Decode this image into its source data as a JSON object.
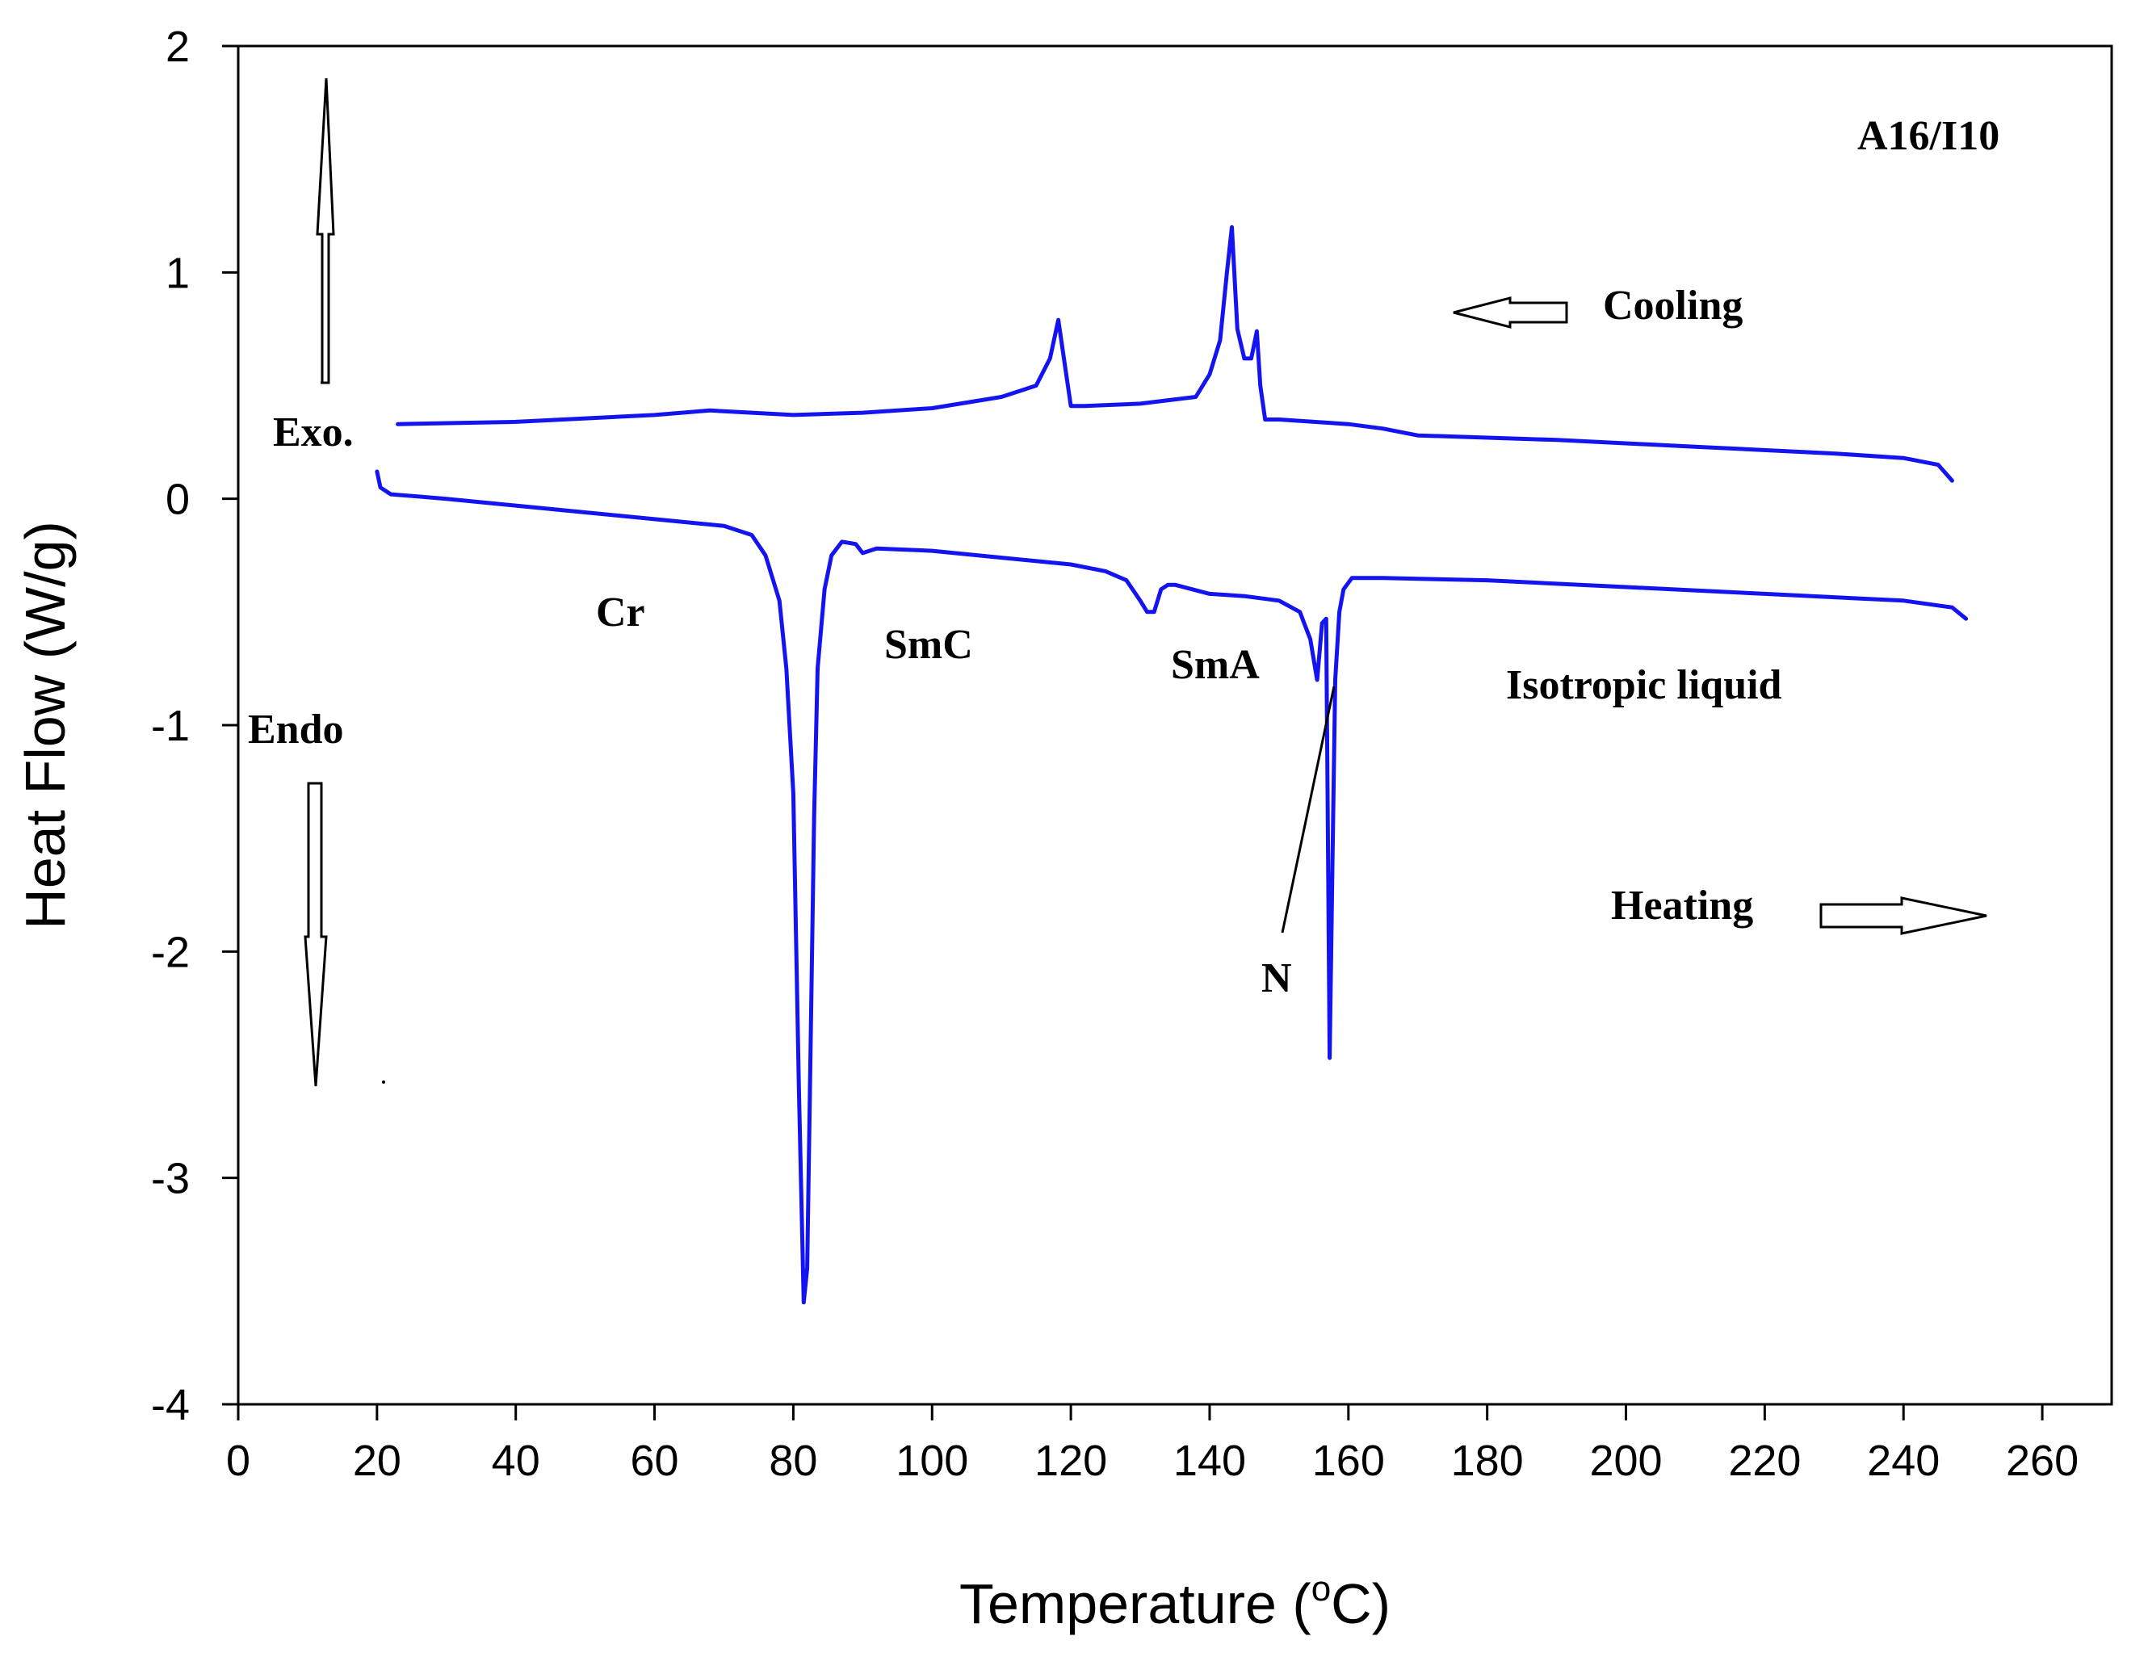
{
  "chart_data": {
    "type": "line",
    "title": "",
    "xlabel": "Temperature",
    "xlabel_unit_prefix": "(",
    "xlabel_unit_sup": "o",
    "xlabel_unit_suffix": "C)",
    "ylabel": "Heat Flow (W/g)",
    "xlim": [
      0,
      270
    ],
    "ylim": [
      -4,
      2
    ],
    "xticks": [
      0,
      20,
      40,
      60,
      80,
      100,
      120,
      140,
      160,
      180,
      200,
      220,
      240,
      260
    ],
    "yticks": [
      -4,
      -3,
      -2,
      -1,
      0,
      1,
      2
    ],
    "grid": false,
    "line_color": "#1414f0",
    "series": [
      {
        "name": "Cooling",
        "x": [
          23,
          40,
          60,
          68,
          80,
          90,
          100,
          110,
          115,
          117,
          118.2,
          119,
          120,
          122,
          130,
          138,
          140,
          141.5,
          142.5,
          143.2,
          144,
          145,
          146,
          146.8,
          147.3,
          148,
          150,
          160,
          165,
          170,
          190,
          210,
          230,
          240,
          245,
          247
        ],
        "y": [
          0.33,
          0.34,
          0.37,
          0.39,
          0.37,
          0.38,
          0.4,
          0.45,
          0.5,
          0.62,
          0.79,
          0.62,
          0.41,
          0.41,
          0.42,
          0.45,
          0.55,
          0.7,
          1.0,
          1.2,
          0.75,
          0.62,
          0.62,
          0.74,
          0.5,
          0.35,
          0.35,
          0.33,
          0.31,
          0.28,
          0.26,
          0.23,
          0.2,
          0.18,
          0.15,
          0.08
        ]
      },
      {
        "name": "Heating",
        "x": [
          20,
          20.5,
          22,
          30,
          40,
          50,
          60,
          70,
          74,
          76,
          78,
          79,
          80,
          80.8,
          81.5,
          82,
          82.5,
          83,
          83.5,
          84.5,
          85.5,
          87,
          89,
          90,
          92,
          100,
          110,
          120,
          125,
          128,
          130,
          131,
          132,
          133,
          134,
          135,
          140,
          145,
          150,
          153,
          154.5,
          155.5,
          156.2,
          156.8,
          157.3,
          157.7,
          158.1,
          158.7,
          159.3,
          160.5,
          162,
          165,
          180,
          200,
          220,
          240,
          247,
          249
        ],
        "y": [
          0.12,
          0.05,
          0.02,
          0.0,
          -0.03,
          -0.06,
          -0.09,
          -0.12,
          -0.16,
          -0.25,
          -0.45,
          -0.75,
          -1.3,
          -2.6,
          -3.55,
          -3.4,
          -2.4,
          -1.4,
          -0.75,
          -0.4,
          -0.25,
          -0.19,
          -0.2,
          -0.24,
          -0.22,
          -0.23,
          -0.26,
          -0.29,
          -0.32,
          -0.36,
          -0.45,
          -0.5,
          -0.5,
          -0.4,
          -0.38,
          -0.38,
          -0.42,
          -0.43,
          -0.45,
          -0.5,
          -0.62,
          -0.8,
          -0.55,
          -0.53,
          -2.47,
          -1.6,
          -0.8,
          -0.5,
          -0.4,
          -0.35,
          -0.35,
          -0.35,
          -0.36,
          -0.39,
          -0.42,
          -0.45,
          -0.48,
          -0.53
        ]
      }
    ],
    "annotations": {
      "sample": "A16/I10",
      "cooling": "Cooling",
      "heating": "Heating",
      "exo": "Exo.",
      "endo": "Endo",
      "cr": "Cr",
      "smc": "SmC",
      "sma": "SmA",
      "n": "N",
      "iso": "Isotropic liquid"
    }
  }
}
